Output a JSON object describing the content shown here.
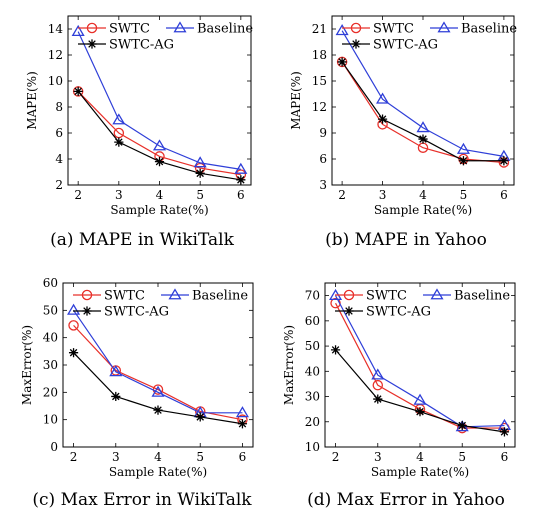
{
  "chart_data": [
    {
      "type": "line",
      "caption": "(a) MAPE in WikiTalk",
      "xlabel": "Sample Rate(%)",
      "ylabel": "MAPE(%)",
      "x": [
        2,
        3,
        4,
        5,
        6
      ],
      "xlim": [
        1.75,
        6.25
      ],
      "ylim": [
        2,
        15
      ],
      "yticks": [
        2,
        4,
        6,
        8,
        10,
        12,
        14
      ],
      "series": [
        {
          "name": "SWTC",
          "values": [
            9.2,
            6.0,
            4.2,
            3.3,
            2.8
          ],
          "color": "#e8302a",
          "marker": "circle"
        },
        {
          "name": "Baseline",
          "values": [
            13.8,
            7.0,
            5.0,
            3.7,
            3.2
          ],
          "color": "#2f3fd8",
          "marker": "triangle"
        },
        {
          "name": "SWTC-AG",
          "values": [
            9.2,
            5.3,
            3.8,
            2.9,
            2.4
          ],
          "color": "#000000",
          "marker": "star"
        }
      ]
    },
    {
      "type": "line",
      "caption": "(b) MAPE in Yahoo",
      "xlabel": "Sample Rate(%)",
      "ylabel": "MAPE(%)",
      "x": [
        2,
        3,
        4,
        5,
        6
      ],
      "xlim": [
        1.75,
        6.25
      ],
      "ylim": [
        3,
        22.5
      ],
      "yticks": [
        3,
        6,
        9,
        12,
        15,
        18,
        21
      ],
      "series": [
        {
          "name": "SWTC",
          "values": [
            17.2,
            10.0,
            7.3,
            6.0,
            5.6
          ],
          "color": "#e8302a",
          "marker": "circle"
        },
        {
          "name": "Baseline",
          "values": [
            20.8,
            12.9,
            9.6,
            7.1,
            6.3
          ],
          "color": "#2f3fd8",
          "marker": "triangle"
        },
        {
          "name": "SWTC-AG",
          "values": [
            17.2,
            10.6,
            8.3,
            5.8,
            5.8
          ],
          "color": "#000000",
          "marker": "star"
        }
      ]
    },
    {
      "type": "line",
      "caption": "(c) Max Error in WikiTalk",
      "xlabel": "Sample Rate(%)",
      "ylabel": "MaxError(%)",
      "x": [
        2,
        3,
        4,
        5,
        6
      ],
      "xlim": [
        1.75,
        6.25
      ],
      "ylim": [
        0,
        60
      ],
      "yticks": [
        0,
        10,
        20,
        30,
        40,
        50,
        60
      ],
      "series": [
        {
          "name": "SWTC",
          "values": [
            44.5,
            28.0,
            21.0,
            13.0,
            10.0
          ],
          "color": "#e8302a",
          "marker": "circle"
        },
        {
          "name": "Baseline",
          "values": [
            50.0,
            27.5,
            20.0,
            12.5,
            12.5
          ],
          "color": "#2f3fd8",
          "marker": "triangle"
        },
        {
          "name": "SWTC-AG",
          "values": [
            34.5,
            18.5,
            13.5,
            11.0,
            8.5
          ],
          "color": "#000000",
          "marker": "star"
        }
      ]
    },
    {
      "type": "line",
      "caption": "(d) Max Error in Yahoo",
      "xlabel": "Sample Rate(%)",
      "ylabel": "MaxError(%)",
      "x": [
        2,
        3,
        4,
        5,
        6
      ],
      "xlim": [
        1.75,
        6.25
      ],
      "ylim": [
        10,
        75
      ],
      "yticks": [
        10,
        20,
        30,
        40,
        50,
        60,
        70
      ],
      "series": [
        {
          "name": "SWTC",
          "values": [
            67.0,
            34.5,
            25.0,
            17.5,
            17.5
          ],
          "color": "#e8302a",
          "marker": "circle"
        },
        {
          "name": "Baseline",
          "values": [
            70.0,
            38.5,
            28.5,
            18.0,
            18.5
          ],
          "color": "#2f3fd8",
          "marker": "triangle"
        },
        {
          "name": "SWTC-AG",
          "values": [
            48.5,
            29.0,
            24.0,
            18.5,
            16.0
          ],
          "color": "#000000",
          "marker": "star"
        }
      ]
    }
  ]
}
